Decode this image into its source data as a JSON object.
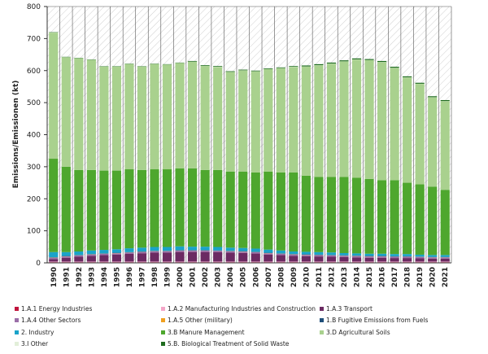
{
  "chart_data": {
    "type": "stacked_bar",
    "y_label": "Emissions/Emissionen (kt)",
    "categories": [
      "1990",
      "1991",
      "1992",
      "1993",
      "1994",
      "1995",
      "1996",
      "1997",
      "1998",
      "1999",
      "2000",
      "2001",
      "2002",
      "2003",
      "2004",
      "2005",
      "2006",
      "2007",
      "2008",
      "2009",
      "2010",
      "2011",
      "2012",
      "2013",
      "2014",
      "2015",
      "2016",
      "2017",
      "2018",
      "2019",
      "2020",
      "2021"
    ],
    "ylim": [
      0,
      800
    ],
    "yticks": [
      0,
      100,
      200,
      300,
      400,
      500,
      600,
      700,
      800
    ],
    "series": [
      {
        "name": "1.A.1 Energy Industries",
        "color": "#c0143c",
        "values": [
          2,
          2,
          2,
          2,
          2,
          2,
          2,
          2,
          2,
          2,
          2,
          2,
          2,
          2,
          2,
          2,
          2,
          2,
          2,
          2,
          2,
          2,
          2,
          2,
          2,
          2,
          2,
          2,
          2,
          2,
          2,
          2
        ]
      },
      {
        "name": "1.A.2 Manufacturing Industries and Construction",
        "color": "#f4a6c8",
        "values": [
          2,
          2,
          2,
          2,
          2,
          2,
          2,
          2,
          2,
          2,
          2,
          2,
          2,
          2,
          2,
          2,
          2,
          2,
          2,
          2,
          2,
          2,
          2,
          2,
          2,
          2,
          2,
          2,
          2,
          2,
          2,
          2
        ]
      },
      {
        "name": "1.A.3 Transport",
        "color": "#6b2a62",
        "values": [
          8,
          12,
          15,
          18,
          20,
          22,
          24,
          26,
          28,
          28,
          30,
          30,
          30,
          29,
          28,
          27,
          25,
          22,
          20,
          18,
          17,
          16,
          15,
          14,
          13,
          12,
          12,
          11,
          11,
          10,
          9,
          9
        ]
      },
      {
        "name": "1.A.4 Other Sectors",
        "color": "#9b6fa8",
        "values": [
          4,
          4,
          4,
          4,
          4,
          4,
          4,
          4,
          4,
          4,
          4,
          4,
          4,
          4,
          4,
          4,
          4,
          4,
          4,
          4,
          4,
          4,
          4,
          4,
          4,
          4,
          4,
          4,
          4,
          4,
          4,
          4
        ]
      },
      {
        "name": "1.A.5 Other (military)",
        "color": "#f0a020",
        "values": [
          0.5,
          0.5,
          0.5,
          0.5,
          0.5,
          0.5,
          0.5,
          0.5,
          0.5,
          0.5,
          0.5,
          0.5,
          0.5,
          0.5,
          0.5,
          0.5,
          0.5,
          0.5,
          0.5,
          0.5,
          0.5,
          0.5,
          0.5,
          0.5,
          0.5,
          0.5,
          0.5,
          0.5,
          0.5,
          0.5,
          0.5,
          0.5
        ]
      },
      {
        "name": "1.B Fugitive Emissions from Fuels",
        "color": "#1f4e79",
        "values": [
          1,
          1,
          1,
          1,
          1,
          1,
          1,
          1,
          1,
          1,
          1,
          1,
          1,
          1,
          1,
          1,
          1,
          1,
          1,
          1,
          1,
          1,
          1,
          1,
          1,
          1,
          1,
          1,
          1,
          1,
          1,
          1
        ]
      },
      {
        "name": "2. Industry",
        "color": "#1aa3c9",
        "values": [
          16,
          12,
          11,
          11,
          11,
          11,
          12,
          12,
          12,
          12,
          12,
          11,
          11,
          11,
          10,
          10,
          10,
          10,
          9,
          8,
          8,
          8,
          8,
          7,
          7,
          7,
          7,
          7,
          7,
          6,
          6,
          6
        ]
      },
      {
        "name": "3.B Manure Management",
        "color": "#4ea72e",
        "values": [
          291.5,
          266.5,
          254.5,
          251.5,
          247.5,
          245.5,
          246.5,
          242.5,
          242.5,
          242.5,
          243.5,
          244.5,
          239.5,
          240.5,
          237.5,
          238.5,
          237.5,
          243.5,
          243.5,
          246.5,
          237.5,
          234.5,
          235.5,
          237.5,
          236.5,
          233.5,
          229.5,
          230.5,
          222.5,
          219.5,
          213.5,
          203.5
        ]
      },
      {
        "name": "3.D Agricultural Soils",
        "color": "#a9d18e",
        "values": [
          393.5,
          341.5,
          348.5,
          343.5,
          324.5,
          324.5,
          328.5,
          322.5,
          328.5,
          326.5,
          328.5,
          332.5,
          324.5,
          321.5,
          310.5,
          315.5,
          315.5,
          319.5,
          325.5,
          329.5,
          340.5,
          348.5,
          353.5,
          360.5,
          368.5,
          370.5,
          368.5,
          350.5,
          328.5,
          313.5,
          278.5,
          276.5
        ]
      },
      {
        "name": "3.I Other",
        "color": "#e2efd9",
        "values": [
          0.5,
          0.5,
          0.5,
          0.5,
          0.5,
          0.5,
          0.5,
          0.5,
          0.5,
          0.5,
          0.5,
          0.5,
          0.5,
          0.5,
          0.5,
          0.5,
          0.5,
          0.5,
          0.5,
          0.5,
          0.5,
          0.5,
          0.5,
          0.5,
          0.5,
          0.5,
          0.5,
          0.5,
          0.5,
          0.5,
          0.5,
          0.5
        ]
      },
      {
        "name": "5.B. Biological Treatment of Solid Waste",
        "color": "#1e6b1e",
        "values": [
          1,
          1,
          1,
          1,
          1,
          1,
          1,
          1,
          1,
          1,
          1,
          2,
          2,
          2,
          2,
          2,
          2,
          2,
          2,
          2,
          3,
          3,
          3,
          3,
          3,
          3,
          3,
          3,
          3,
          3,
          3,
          3
        ]
      }
    ]
  }
}
